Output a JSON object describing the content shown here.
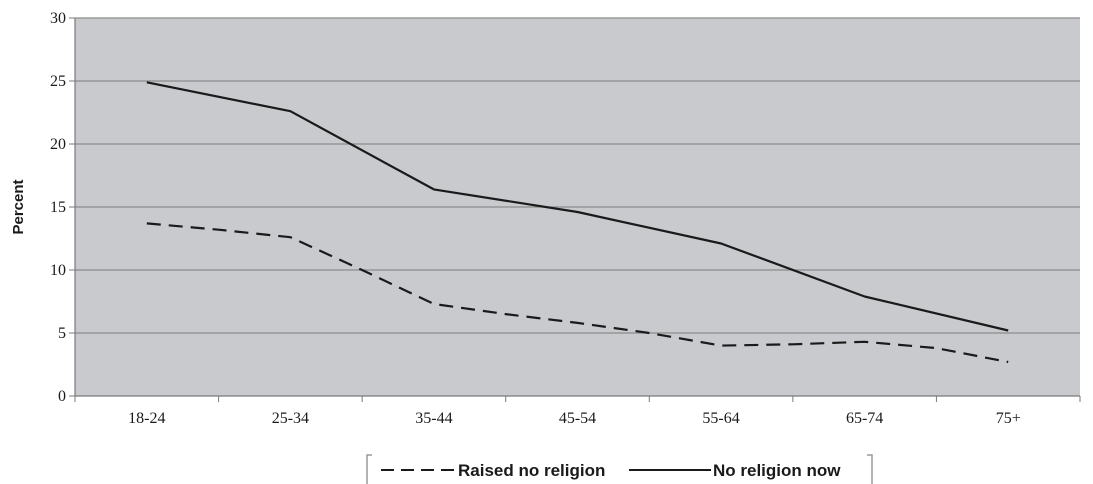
{
  "chart_data": {
    "type": "line",
    "title": "",
    "xlabel": "",
    "ylabel": "Percent",
    "categories": [
      "18-24",
      "25-34",
      "35-44",
      "45-54",
      "55-64",
      "65-74",
      "75+"
    ],
    "ylim": [
      0,
      30
    ],
    "yticks": [
      0,
      5,
      10,
      15,
      20,
      25,
      30
    ],
    "grid": true,
    "legend_position": "bottom-center",
    "series": [
      {
        "name": "Raised no religion",
        "style": "dashed",
        "color": "#1a1a1a",
        "x": [
          0,
          0.5,
          1,
          1.5,
          2,
          2.5,
          3,
          3.5,
          4,
          4.5,
          5,
          5.5,
          6
        ],
        "values": [
          13.7,
          13.2,
          12.6,
          10.0,
          7.3,
          6.5,
          5.8,
          5.0,
          4.0,
          4.1,
          4.3,
          3.8,
          2.7
        ]
      },
      {
        "name": "No religion now",
        "style": "solid",
        "color": "#1a1a1a",
        "x": [
          0,
          1,
          2,
          3,
          4,
          5,
          6
        ],
        "values": [
          24.9,
          22.6,
          16.4,
          14.6,
          12.1,
          7.9,
          5.2
        ]
      }
    ],
    "colors": {
      "plot_background": "#c9cace",
      "gridline": "#8c8c8c",
      "axis": "#7a7a7a"
    }
  }
}
